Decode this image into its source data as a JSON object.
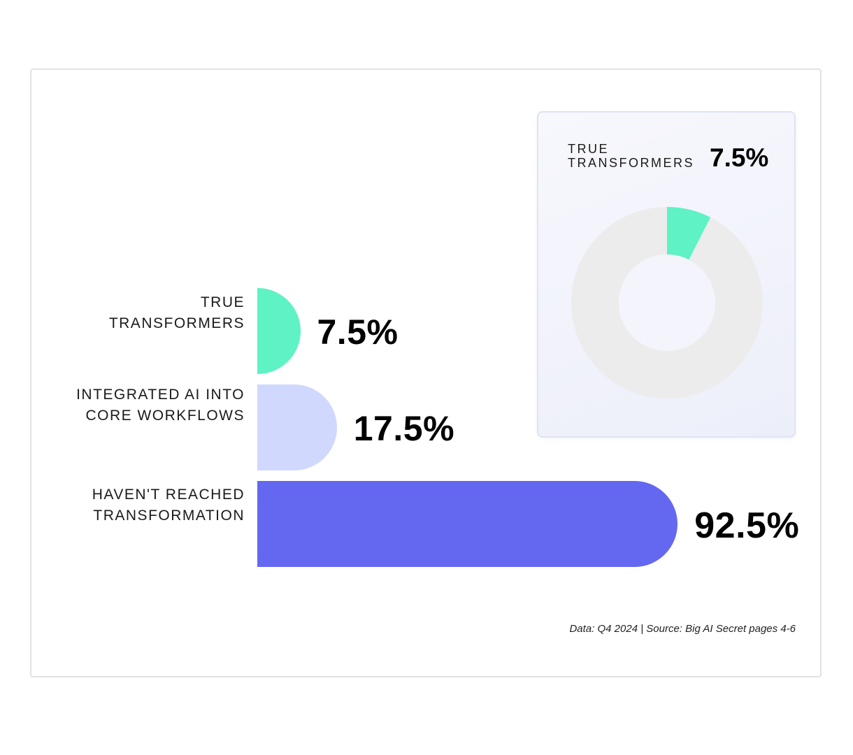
{
  "chart_data": [
    {
      "type": "bar",
      "orientation": "horizontal",
      "categories": [
        "TRUE\nTRANSFORMERS",
        "INTEGRATED AI INTO\nCORE WORKFLOWS",
        "HAVEN'T REACHED\nTRANSFORMATION"
      ],
      "values": [
        7.5,
        17.5,
        92.5
      ],
      "value_labels": [
        "7.5%",
        "17.5%",
        "92.5%"
      ],
      "colors": [
        "#5ef2c4",
        "#d0d8fd",
        "#6468f0"
      ],
      "xlim": [
        0,
        100
      ],
      "grid": false
    },
    {
      "type": "pie",
      "style": "donut",
      "label": "TRUE\nTRANSFORMERS",
      "value_label": "7.5%",
      "slices": [
        {
          "value": 7.5,
          "color": "#5ef2c4"
        },
        {
          "value": 92.5,
          "color": "#ececec"
        }
      ]
    }
  ],
  "footnote": "Data: Q4 2024 | Source: Big AI Secret pages 4-6"
}
